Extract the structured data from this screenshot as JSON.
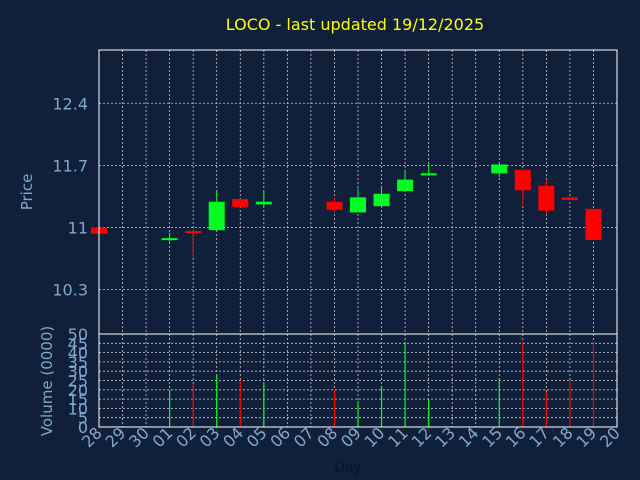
{
  "chart_data": [
    {
      "type": "candlestick",
      "title": "LOCO - last updated 19/12/2025",
      "ylabel": "Price",
      "ylim": [
        9.8,
        13.0
      ],
      "yticks": [
        "12.4",
        "11.7",
        "11",
        "10.3"
      ],
      "ytick_values": [
        12.4,
        11.7,
        11.0,
        10.3
      ],
      "grid": true,
      "categories": [
        "28",
        "29",
        "30",
        "01",
        "02",
        "03",
        "04",
        "05",
        "06",
        "07",
        "08",
        "09",
        "10",
        "11",
        "12",
        "13",
        "14",
        "15",
        "16",
        "17",
        "18",
        "19",
        "20"
      ],
      "candles": [
        {
          "x": "28",
          "open": 11.0,
          "close": 10.93,
          "high": 11.0,
          "low": 10.93
        },
        {
          "x": "01",
          "open": 10.86,
          "close": 10.88,
          "high": 10.94,
          "low": 10.84
        },
        {
          "x": "02",
          "open": 10.96,
          "close": 10.95,
          "high": 10.98,
          "low": 10.66
        },
        {
          "x": "03",
          "open": 10.97,
          "close": 11.29,
          "high": 11.42,
          "low": 10.97
        },
        {
          "x": "04",
          "open": 11.32,
          "close": 11.23,
          "high": 11.32,
          "low": 11.23
        },
        {
          "x": "05",
          "open": 11.26,
          "close": 11.29,
          "high": 11.4,
          "low": 11.24
        },
        {
          "x": "08",
          "open": 11.29,
          "close": 11.2,
          "high": 11.34,
          "low": 11.17
        },
        {
          "x": "09",
          "open": 11.17,
          "close": 11.34,
          "high": 11.44,
          "low": 11.17
        },
        {
          "x": "10",
          "open": 11.24,
          "close": 11.38,
          "high": 11.45,
          "low": 11.24
        },
        {
          "x": "11",
          "open": 11.41,
          "close": 11.54,
          "high": 11.65,
          "low": 11.41
        },
        {
          "x": "12",
          "open": 11.59,
          "close": 11.61,
          "high": 11.72,
          "low": 11.58
        },
        {
          "x": "15",
          "open": 11.61,
          "close": 11.71,
          "high": 11.72,
          "low": 11.57
        },
        {
          "x": "16",
          "open": 11.65,
          "close": 11.42,
          "high": 11.65,
          "low": 11.25
        },
        {
          "x": "17",
          "open": 11.47,
          "close": 11.19,
          "high": 11.54,
          "low": 11.16
        },
        {
          "x": "18",
          "open": 11.34,
          "close": 11.31,
          "high": 11.34,
          "low": 11.31
        },
        {
          "x": "19",
          "open": 11.21,
          "close": 10.86,
          "high": 11.21,
          "low": 10.86
        }
      ],
      "colors": {
        "up": "#00ff22",
        "down": "#ff0000",
        "doji": "#ff0000"
      }
    },
    {
      "type": "bar",
      "xlabel": "Day",
      "ylabel": "Volume (0000)",
      "ylim": [
        0,
        50
      ],
      "yticks": [
        "50",
        "45",
        "40",
        "35",
        "30",
        "25",
        "20",
        "15",
        "10",
        "5",
        "0"
      ],
      "categories": [
        "28",
        "29",
        "30",
        "01",
        "02",
        "03",
        "04",
        "05",
        "06",
        "07",
        "08",
        "09",
        "10",
        "11",
        "12",
        "13",
        "14",
        "15",
        "16",
        "17",
        "18",
        "19",
        "20"
      ],
      "volumes": [
        {
          "x": "01",
          "value": 20,
          "dir": "up"
        },
        {
          "x": "02",
          "value": 23,
          "dir": "down"
        },
        {
          "x": "03",
          "value": 28,
          "dir": "up"
        },
        {
          "x": "04",
          "value": 25,
          "dir": "down"
        },
        {
          "x": "05",
          "value": 24,
          "dir": "up"
        },
        {
          "x": "08",
          "value": 20,
          "dir": "down"
        },
        {
          "x": "09",
          "value": 14,
          "dir": "up"
        },
        {
          "x": "10",
          "value": 22,
          "dir": "up"
        },
        {
          "x": "11",
          "value": 45,
          "dir": "up"
        },
        {
          "x": "12",
          "value": 15,
          "dir": "up"
        },
        {
          "x": "15",
          "value": 26,
          "dir": "up"
        },
        {
          "x": "16",
          "value": 46,
          "dir": "down"
        },
        {
          "x": "17",
          "value": 19,
          "dir": "down"
        },
        {
          "x": "18",
          "value": 25,
          "dir": "down"
        },
        {
          "x": "19",
          "value": 46,
          "dir": "down"
        }
      ]
    }
  ],
  "style": {
    "background": "#10203a",
    "title_color": "#ffff00",
    "label_color": "#7fa8cc",
    "frame_color": "#ffffff",
    "grid_color": "#c8c8c8"
  }
}
